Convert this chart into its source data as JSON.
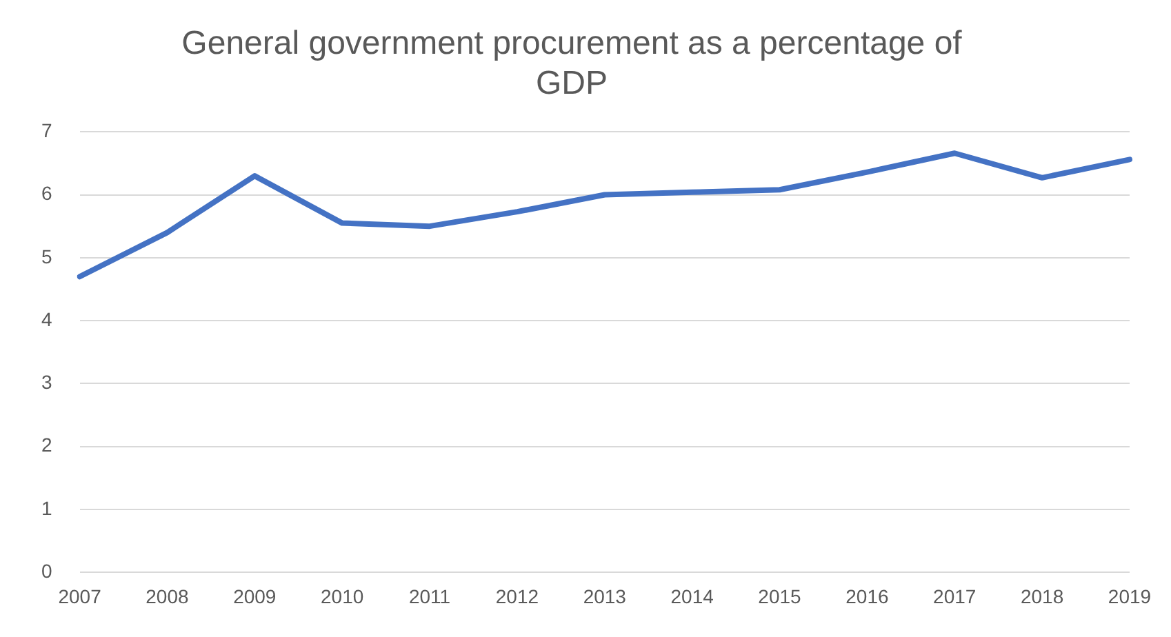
{
  "chart_data": {
    "type": "line",
    "title": [
      "General government procurement as a percentage of",
      "GDP"
    ],
    "categories": [
      "2007",
      "2008",
      "2009",
      "2010",
      "2011",
      "2012",
      "2013",
      "2014",
      "2015",
      "2016",
      "2017",
      "2018",
      "2019"
    ],
    "series": [
      {
        "color": "#4472c4",
        "values": [
          4.7,
          5.4,
          6.3,
          5.55,
          5.5,
          5.73,
          6.0,
          6.04,
          6.08,
          6.36,
          6.66,
          6.27,
          6.56
        ]
      }
    ],
    "ylim": [
      0,
      7
    ],
    "yticks": [
      0,
      1,
      2,
      3,
      4,
      5,
      6,
      7
    ],
    "grid": "y",
    "legend": false,
    "marker": "none",
    "line_style": "solid"
  }
}
